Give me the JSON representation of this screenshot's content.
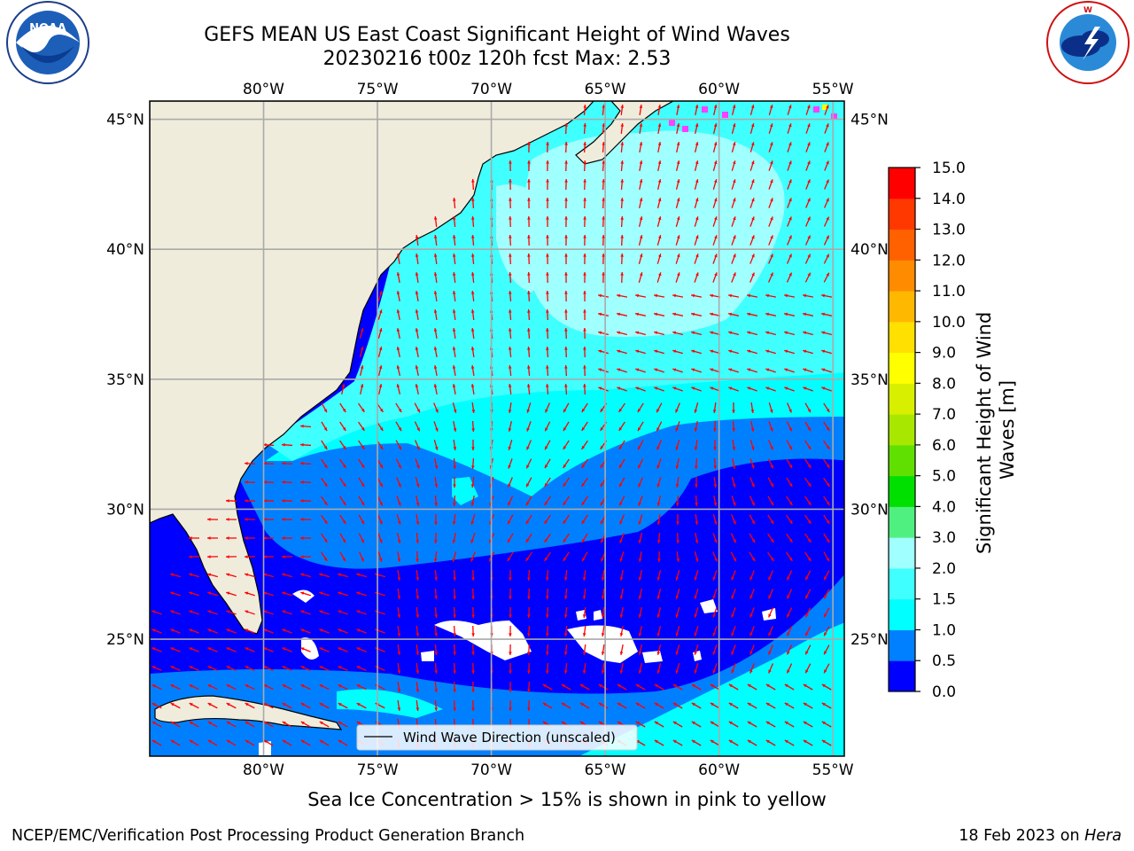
{
  "header": {
    "title_line1": "GEFS MEAN US East Coast Significant Height of Wind Waves",
    "title_line2": "20230216 t00z 120h fcst   Max: 2.53"
  },
  "logos": {
    "noaa_text": "NOAA",
    "noaa_ring": "NATIONAL OCEANIC AND ATMOSPHERIC ADMINISTRATION · U.S. DEPARTMENT OF COMMERCE",
    "nws_ring": "NATIONAL WEATHER SERVICE"
  },
  "map": {
    "lon_ticks": [
      "80°W",
      "75°W",
      "70°W",
      "65°W",
      "60°W",
      "55°W"
    ],
    "lat_ticks": [
      "45°N",
      "40°N",
      "35°N",
      "30°N",
      "25°N"
    ],
    "lon_values": [
      -80,
      -75,
      -70,
      -65,
      -60,
      -55
    ],
    "lat_values": [
      45,
      40,
      35,
      30,
      25
    ],
    "extent": {
      "lon_min": -85,
      "lon_max": -54.5,
      "lat_min": 20.5,
      "lat_max": 45.7
    },
    "legend_label": "Wind Wave Direction (unscaled)",
    "arrow_color": "#ff0000",
    "land_color": "#efecdc"
  },
  "colorbar": {
    "label": "Significant Height of Wind Waves [m]",
    "tick_labels": [
      "0.0",
      "0.5",
      "1.0",
      "1.5",
      "2.0",
      "3.0",
      "4.0",
      "5.0",
      "6.0",
      "7.0",
      "8.0",
      "9.0",
      "10.0",
      "11.0",
      "12.0",
      "13.0",
      "14.0",
      "15.0"
    ],
    "colors": [
      "#0000ff",
      "#0080ff",
      "#00ffff",
      "#40ffff",
      "#a0ffff",
      "#50f080",
      "#00e000",
      "#60e000",
      "#a8e800",
      "#d8f000",
      "#ffff00",
      "#ffe000",
      "#ffb800",
      "#ff8c00",
      "#ff6000",
      "#ff3800",
      "#ff0000"
    ]
  },
  "notes": {
    "sea_ice": "Sea Ice Concentration > 15% is shown in pink to yellow"
  },
  "footer": {
    "left": "NCEP/EMC/Verification Post Processing Product Generation Branch",
    "date": "18 Feb 2023 on",
    "machine": "Hera"
  }
}
